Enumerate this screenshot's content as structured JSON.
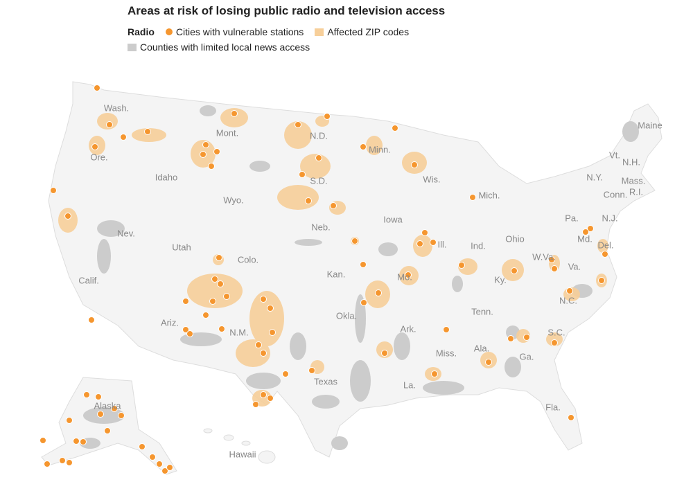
{
  "title": "Areas at risk of losing public radio and television access",
  "legend": {
    "heading": "Radio",
    "items": [
      "Cities with vulnerable stations",
      "Affected ZIP codes",
      "Counties with limited local news access"
    ]
  },
  "labels": [
    "Wash.",
    "Ore.",
    "Calif.",
    "Nev.",
    "Idaho",
    "Mont.",
    "Wyo.",
    "Utah",
    "Ariz.",
    "Colo.",
    "N.M.",
    "N.D.",
    "S.D.",
    "Neb.",
    "Kan.",
    "Okla.",
    "Texas",
    "Minn.",
    "Iowa",
    "Mo.",
    "Ark.",
    "La.",
    "Wis.",
    "Ill.",
    "Mich.",
    "Ind.",
    "Ohio",
    "Ky.",
    "Tenn.",
    "Miss.",
    "Ala.",
    "Ga.",
    "Fla.",
    "S.C.",
    "N.C.",
    "Va.",
    "W.Va.",
    "Pa.",
    "N.Y.",
    "Md.",
    "Del.",
    "N.J.",
    "Conn.",
    "R.I.",
    "Mass.",
    "Vt.",
    "N.H.",
    "Maine",
    "Alaska",
    "Hawaii"
  ]
}
